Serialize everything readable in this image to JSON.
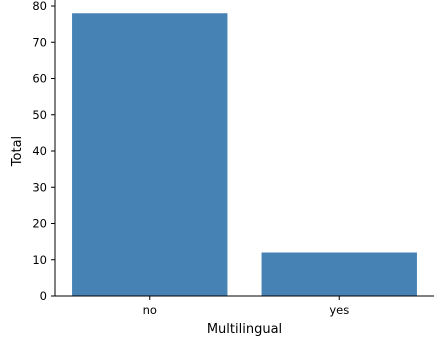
{
  "chart_data": {
    "type": "bar",
    "categories": [
      "no",
      "yes"
    ],
    "values": [
      78,
      12
    ],
    "title": "",
    "xlabel": "Multilingual",
    "ylabel": "Total",
    "ylim": [
      0,
      80
    ],
    "yticks": [
      0,
      10,
      20,
      30,
      40,
      50,
      60,
      70,
      80
    ],
    "grid": false,
    "bar_color": "#4682b4",
    "axis_color": "#000000"
  }
}
